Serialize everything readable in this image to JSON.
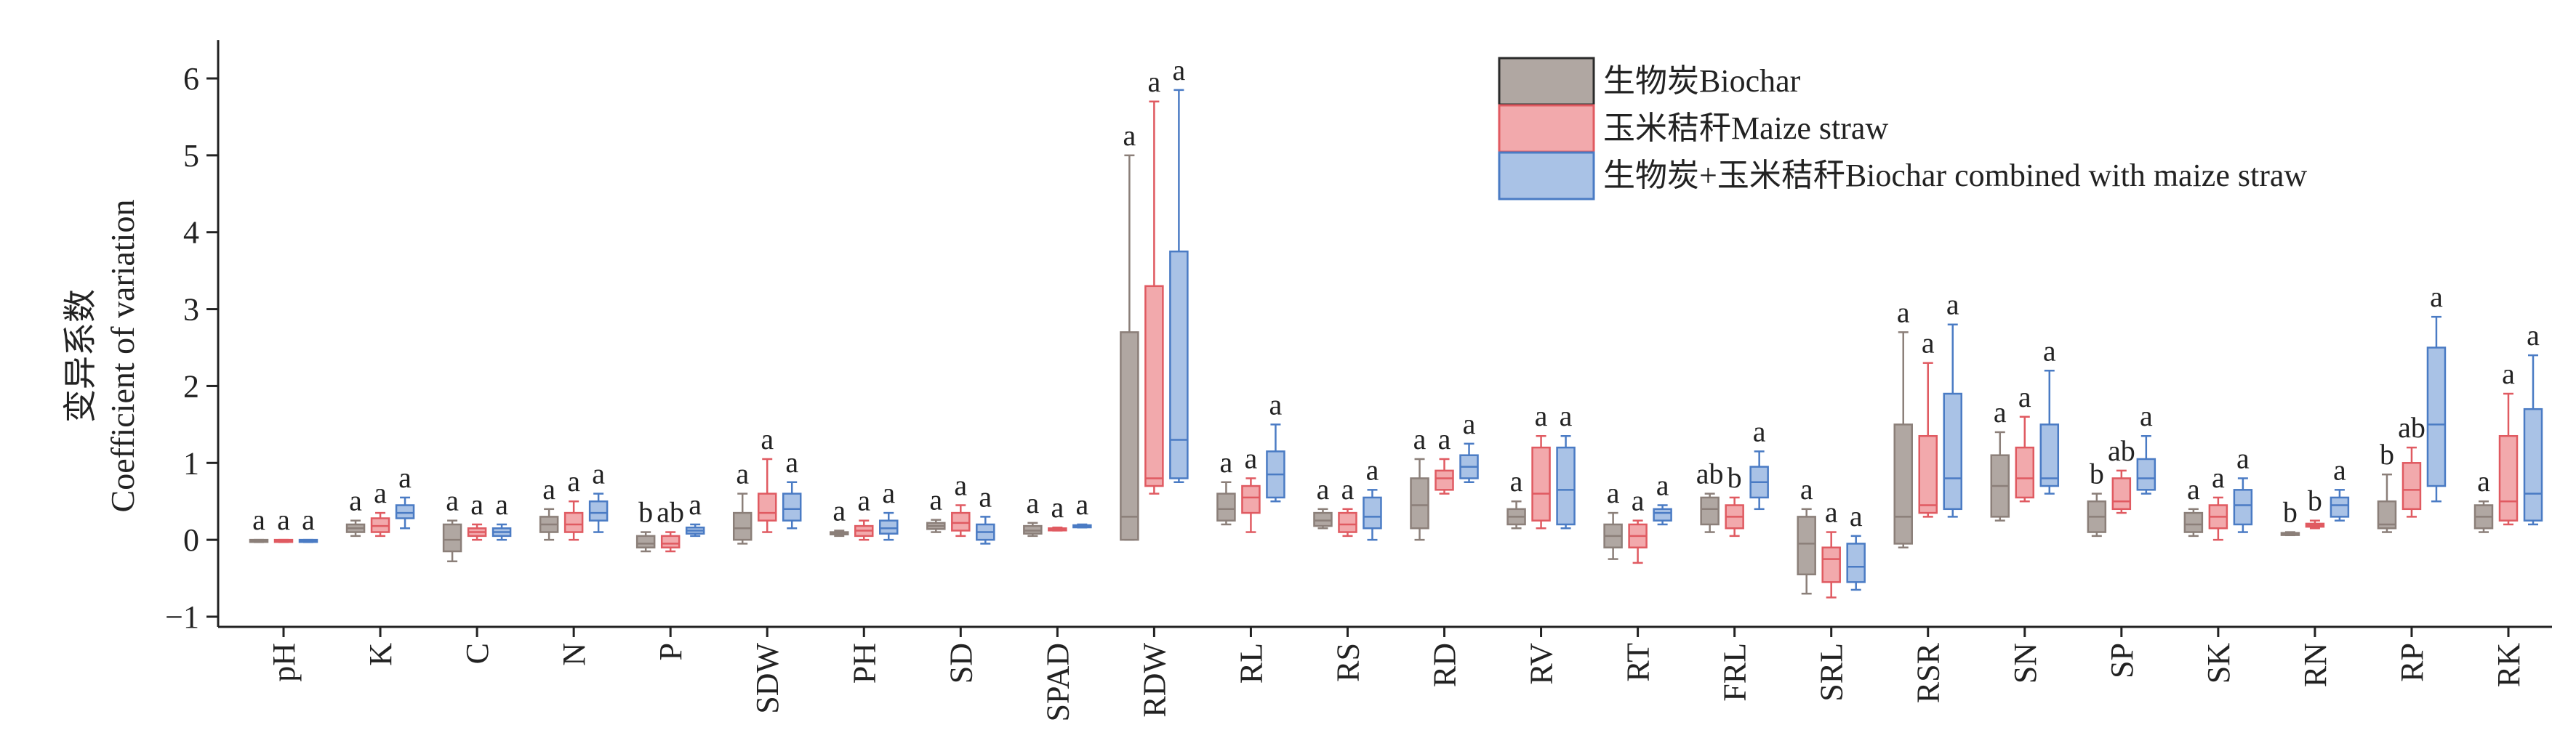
{
  "chart_data": {
    "type": "boxplot",
    "ylabel": [
      "变异系数",
      "Coefficient of variation"
    ],
    "ylim": [
      -1,
      6.5
    ],
    "yticks": [
      -1,
      0,
      1,
      2,
      3,
      4,
      5,
      6
    ],
    "legend_position": "top-right",
    "series": [
      {
        "name": "生物炭Biochar",
        "color": "#8b7f79",
        "fill": "#b0a7a2"
      },
      {
        "name": "玉米秸秆Maize straw",
        "color": "#e05a61",
        "fill": "#f2a9ac"
      },
      {
        "name": "生物炭+玉米秸秆Biochar combined with maize straw",
        "color": "#4a7bc4",
        "fill": "#a9c2e6"
      }
    ],
    "categories": [
      "pH",
      "K",
      "C",
      "N",
      "P",
      "SDW",
      "PH",
      "SD",
      "SPAD",
      "RDW",
      "RL",
      "RS",
      "RD",
      "RV",
      "RT",
      "FRL",
      "SRL",
      "RSR",
      "SN",
      "SP",
      "SK",
      "RN",
      "RP",
      "RK"
    ],
    "boxes": [
      [
        [
          -0.03,
          -0.02,
          -0.01,
          0.0,
          0.0
        ],
        [
          -0.03,
          -0.02,
          -0.01,
          0.0,
          0.0
        ],
        [
          -0.03,
          -0.02,
          -0.01,
          0.0,
          0.0
        ]
      ],
      [
        [
          0.05,
          0.1,
          0.15,
          0.2,
          0.25
        ],
        [
          0.05,
          0.1,
          0.18,
          0.28,
          0.35
        ],
        [
          0.15,
          0.28,
          0.35,
          0.45,
          0.55
        ]
      ],
      [
        [
          -0.28,
          -0.15,
          0.0,
          0.2,
          0.25
        ],
        [
          0.0,
          0.05,
          0.1,
          0.15,
          0.2
        ],
        [
          0.0,
          0.05,
          0.1,
          0.15,
          0.2
        ]
      ],
      [
        [
          0.0,
          0.1,
          0.2,
          0.3,
          0.4
        ],
        [
          0.0,
          0.1,
          0.2,
          0.35,
          0.5
        ],
        [
          0.1,
          0.25,
          0.35,
          0.5,
          0.6
        ]
      ],
      [
        [
          -0.15,
          -0.1,
          -0.05,
          0.05,
          0.1
        ],
        [
          -0.15,
          -0.1,
          -0.05,
          0.05,
          0.1
        ],
        [
          0.05,
          0.08,
          0.12,
          0.16,
          0.2
        ]
      ],
      [
        [
          -0.05,
          0.0,
          0.15,
          0.35,
          0.6
        ],
        [
          0.1,
          0.25,
          0.35,
          0.6,
          1.05
        ],
        [
          0.15,
          0.25,
          0.4,
          0.6,
          0.75
        ]
      ],
      [
        [
          0.05,
          0.07,
          0.08,
          0.1,
          0.12
        ],
        [
          0.0,
          0.05,
          0.12,
          0.18,
          0.25
        ],
        [
          0.0,
          0.08,
          0.15,
          0.25,
          0.35
        ]
      ],
      [
        [
          0.1,
          0.14,
          0.18,
          0.22,
          0.26
        ],
        [
          0.05,
          0.12,
          0.22,
          0.35,
          0.45
        ],
        [
          -0.05,
          0.0,
          0.1,
          0.2,
          0.3
        ]
      ],
      [
        [
          0.05,
          0.08,
          0.12,
          0.18,
          0.22
        ],
        [
          0.12,
          0.13,
          0.14,
          0.15,
          0.16
        ],
        [
          0.16,
          0.17,
          0.18,
          0.19,
          0.2
        ]
      ],
      [
        [
          0.0,
          0.0,
          0.3,
          2.7,
          5.0
        ],
        [
          0.6,
          0.7,
          0.8,
          3.3,
          5.7
        ],
        [
          0.75,
          0.8,
          1.3,
          3.75,
          5.85
        ]
      ],
      [
        [
          0.2,
          0.25,
          0.4,
          0.6,
          0.75
        ],
        [
          0.1,
          0.35,
          0.55,
          0.7,
          0.8
        ],
        [
          0.5,
          0.55,
          0.85,
          1.15,
          1.5
        ]
      ],
      [
        [
          0.15,
          0.18,
          0.25,
          0.35,
          0.4
        ],
        [
          0.05,
          0.1,
          0.2,
          0.35,
          0.4
        ],
        [
          0.0,
          0.15,
          0.3,
          0.55,
          0.65
        ]
      ],
      [
        [
          0.0,
          0.15,
          0.45,
          0.8,
          1.05
        ],
        [
          0.6,
          0.65,
          0.8,
          0.9,
          1.05
        ],
        [
          0.75,
          0.8,
          0.95,
          1.1,
          1.25
        ]
      ],
      [
        [
          0.15,
          0.2,
          0.3,
          0.4,
          0.5
        ],
        [
          0.15,
          0.25,
          0.6,
          1.2,
          1.35
        ],
        [
          0.15,
          0.2,
          0.65,
          1.2,
          1.35
        ]
      ],
      [
        [
          -0.25,
          -0.1,
          0.05,
          0.2,
          0.35
        ],
        [
          -0.3,
          -0.1,
          0.05,
          0.2,
          0.25
        ],
        [
          0.2,
          0.25,
          0.35,
          0.4,
          0.45
        ]
      ],
      [
        [
          0.1,
          0.2,
          0.4,
          0.55,
          0.6
        ],
        [
          0.05,
          0.15,
          0.3,
          0.45,
          0.55
        ],
        [
          0.4,
          0.55,
          0.75,
          0.95,
          1.15
        ]
      ],
      [
        [
          -0.7,
          -0.45,
          -0.05,
          0.3,
          0.4
        ],
        [
          -0.75,
          -0.55,
          -0.25,
          -0.1,
          0.1
        ],
        [
          -0.65,
          -0.55,
          -0.35,
          -0.05,
          0.05
        ]
      ],
      [
        [
          -0.1,
          -0.05,
          0.3,
          1.5,
          2.7
        ],
        [
          0.3,
          0.35,
          0.45,
          1.35,
          2.3
        ],
        [
          0.3,
          0.4,
          0.8,
          1.9,
          2.8
        ]
      ],
      [
        [
          0.25,
          0.3,
          0.7,
          1.1,
          1.4
        ],
        [
          0.5,
          0.55,
          0.8,
          1.2,
          1.6
        ],
        [
          0.6,
          0.7,
          0.8,
          1.5,
          2.2
        ]
      ],
      [
        [
          0.05,
          0.1,
          0.3,
          0.5,
          0.6
        ],
        [
          0.35,
          0.4,
          0.5,
          0.8,
          0.9
        ],
        [
          0.6,
          0.65,
          0.8,
          1.05,
          1.35
        ]
      ],
      [
        [
          0.05,
          0.1,
          0.2,
          0.35,
          0.4
        ],
        [
          0.0,
          0.15,
          0.3,
          0.45,
          0.55
        ],
        [
          0.1,
          0.2,
          0.45,
          0.65,
          0.8
        ]
      ],
      [
        [
          0.06,
          0.07,
          0.08,
          0.09,
          0.1
        ],
        [
          0.15,
          0.17,
          0.19,
          0.21,
          0.25
        ],
        [
          0.25,
          0.3,
          0.45,
          0.55,
          0.65
        ]
      ],
      [
        [
          0.1,
          0.15,
          0.2,
          0.5,
          0.85
        ],
        [
          0.3,
          0.4,
          0.65,
          1.0,
          1.2
        ],
        [
          0.5,
          0.7,
          1.5,
          2.5,
          2.9
        ]
      ],
      [
        [
          0.1,
          0.15,
          0.3,
          0.45,
          0.5
        ],
        [
          0.2,
          0.25,
          0.5,
          1.35,
          1.9
        ],
        [
          0.2,
          0.25,
          0.6,
          1.7,
          2.4
        ]
      ]
    ],
    "letters": [
      [
        "a",
        "a",
        "a"
      ],
      [
        "a",
        "a",
        "a"
      ],
      [
        "a",
        "a",
        "a"
      ],
      [
        "a",
        "a",
        "a"
      ],
      [
        "b",
        "ab",
        "a"
      ],
      [
        "a",
        "a",
        "a"
      ],
      [
        "a",
        "a",
        "a"
      ],
      [
        "a",
        "a",
        "a"
      ],
      [
        "a",
        "a",
        "a"
      ],
      [
        "a",
        "a",
        "a"
      ],
      [
        "a",
        "a",
        "a"
      ],
      [
        "a",
        "a",
        "a"
      ],
      [
        "a",
        "a",
        "a"
      ],
      [
        "a",
        "a",
        "a"
      ],
      [
        "a",
        "a",
        "a"
      ],
      [
        "ab",
        "b",
        "a"
      ],
      [
        "a",
        "a",
        "a"
      ],
      [
        "a",
        "a",
        "a"
      ],
      [
        "a",
        "a",
        "a"
      ],
      [
        "b",
        "ab",
        "a"
      ],
      [
        "a",
        "a",
        "a"
      ],
      [
        "b",
        "b",
        "a"
      ],
      [
        "b",
        "ab",
        "a"
      ],
      [
        "a",
        "a",
        "a"
      ]
    ]
  }
}
